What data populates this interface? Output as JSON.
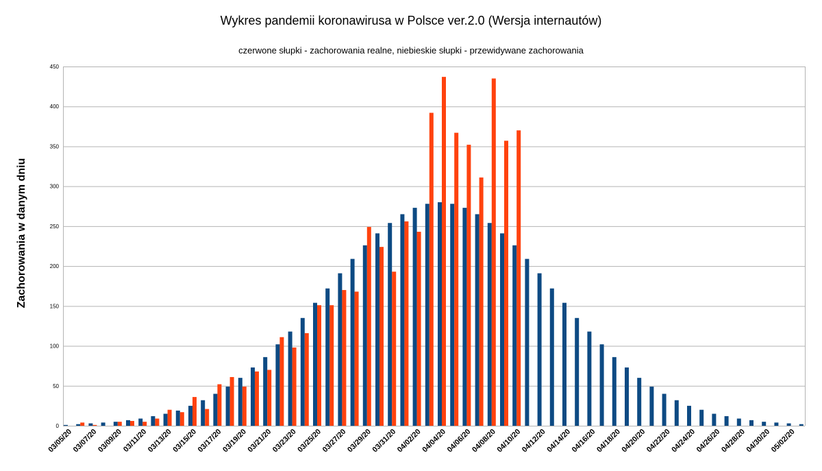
{
  "chart_data": {
    "type": "bar",
    "title": "Wykres pandemii koronawirusa w Polsce ver.2.0 (Wersja internautów)",
    "subtitle": "czerwone słupki - zachorowania realne, niebieskie słupki - przewidywane zachorowania",
    "xlabel": "",
    "ylabel": "Zachorowania w danym dniu",
    "ylim": [
      0,
      450
    ],
    "yticks": [
      0,
      50,
      100,
      150,
      200,
      250,
      300,
      350,
      400,
      450
    ],
    "grid": true,
    "legend": "none",
    "categories": [
      "03/05/20",
      "03/06/20",
      "03/07/20",
      "03/08/20",
      "03/09/20",
      "03/10/20",
      "03/11/20",
      "03/12/20",
      "03/13/20",
      "03/14/20",
      "03/15/20",
      "03/16/20",
      "03/17/20",
      "03/18/20",
      "03/19/20",
      "03/20/20",
      "03/21/20",
      "03/22/20",
      "03/23/20",
      "03/24/20",
      "03/25/20",
      "03/26/20",
      "03/27/20",
      "03/28/20",
      "03/29/20",
      "03/30/20",
      "03/31/20",
      "04/01/20",
      "04/02/20",
      "04/03/20",
      "04/04/20",
      "04/05/20",
      "04/06/20",
      "04/07/20",
      "04/08/20",
      "04/09/20",
      "04/10/20",
      "04/11/20",
      "04/12/20",
      "04/13/20",
      "04/14/20",
      "04/15/20",
      "04/16/20",
      "04/17/20",
      "04/18/20",
      "04/19/20",
      "04/20/20",
      "04/21/20",
      "04/22/20",
      "04/23/20",
      "04/24/20",
      "04/25/20",
      "04/26/20",
      "04/27/20",
      "04/28/20",
      "04/29/20",
      "04/30/20",
      "05/01/20",
      "05/02/20",
      "05/03/20"
    ],
    "tick_labels": [
      "03/05/20",
      "03/07/20",
      "03/09/20",
      "03/11/20",
      "03/13/20",
      "03/15/20",
      "03/17/20",
      "03/19/20",
      "03/21/20",
      "03/23/20",
      "03/25/20",
      "03/27/20",
      "03/29/20",
      "03/31/20",
      "04/02/20",
      "04/04/20",
      "04/06/20",
      "04/08/20",
      "04/10/20",
      "04/12/20",
      "04/14/20",
      "04/16/20",
      "04/18/20",
      "04/20/20",
      "04/22/20",
      "04/24/20",
      "04/26/20",
      "04/28/20",
      "04/30/20",
      "05/02/20"
    ],
    "series": [
      {
        "color": "#0d4a83",
        "values": [
          1,
          2,
          3,
          4,
          5,
          7,
          9,
          12,
          15,
          19,
          25,
          32,
          40,
          49,
          60,
          73,
          86,
          102,
          118,
          135,
          154,
          172,
          191,
          209,
          226,
          241,
          254,
          265,
          273,
          278,
          280,
          278,
          273,
          265,
          254,
          241,
          226,
          209,
          191,
          172,
          154,
          135,
          118,
          102,
          86,
          73,
          60,
          49,
          40,
          32,
          25,
          20,
          15,
          12,
          9,
          7,
          5,
          4,
          3,
          2
        ]
      },
      {
        "color": "#ff420e",
        "values": [
          0,
          4,
          1,
          0,
          5,
          6,
          5,
          9,
          20,
          17,
          36,
          21,
          52,
          61,
          49,
          68,
          70,
          111,
          98,
          116,
          151,
          151,
          170,
          168,
          249,
          224,
          193,
          256,
          243,
          392,
          437,
          367,
          352,
          311,
          435,
          357,
          370,
          null,
          null,
          null,
          null,
          null,
          null,
          null,
          null,
          null,
          null,
          null,
          null,
          null,
          null,
          null,
          null,
          null,
          null,
          null,
          null,
          null,
          null,
          null
        ]
      }
    ]
  }
}
